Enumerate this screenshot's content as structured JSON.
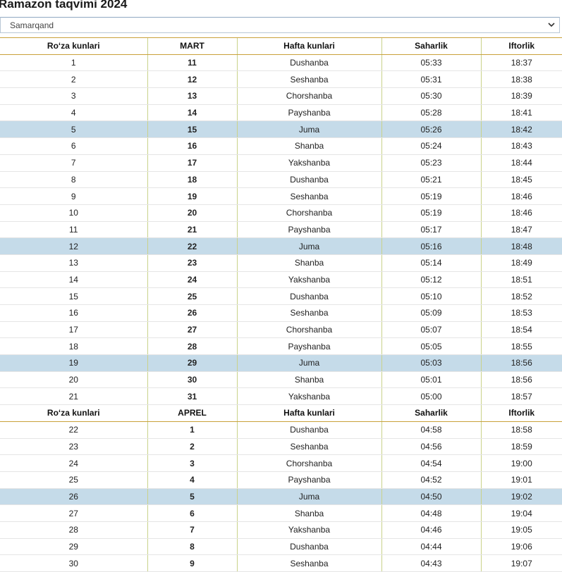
{
  "page": {
    "title": "Ramazon taqvimi 2024"
  },
  "city_select": {
    "value": "Samarqand",
    "icon": "chevron-down-icon"
  },
  "highlight_color": "#c5dbe9",
  "sections": [
    {
      "headers": [
        "Ro‘za kunlari",
        "MART",
        "Hafta kunlari",
        "Saharlik",
        "Iftorlik"
      ],
      "rows": [
        [
          "1",
          "11",
          "Dushanba",
          "05:33",
          "18:37"
        ],
        [
          "2",
          "12",
          "Seshanba",
          "05:31",
          "18:38"
        ],
        [
          "3",
          "13",
          "Chorshanba",
          "05:30",
          "18:39"
        ],
        [
          "4",
          "14",
          "Payshanba",
          "05:28",
          "18:41"
        ],
        [
          "5",
          "15",
          "Juma",
          "05:26",
          "18:42"
        ],
        [
          "6",
          "16",
          "Shanba",
          "05:24",
          "18:43"
        ],
        [
          "7",
          "17",
          "Yakshanba",
          "05:23",
          "18:44"
        ],
        [
          "8",
          "18",
          "Dushanba",
          "05:21",
          "18:45"
        ],
        [
          "9",
          "19",
          "Seshanba",
          "05:19",
          "18:46"
        ],
        [
          "10",
          "20",
          "Chorshanba",
          "05:19",
          "18:46"
        ],
        [
          "11",
          "21",
          "Payshanba",
          "05:17",
          "18:47"
        ],
        [
          "12",
          "22",
          "Juma",
          "05:16",
          "18:48"
        ],
        [
          "13",
          "23",
          "Shanba",
          "05:14",
          "18:49"
        ],
        [
          "14",
          "24",
          "Yakshanba",
          "05:12",
          "18:51"
        ],
        [
          "15",
          "25",
          "Dushanba",
          "05:10",
          "18:52"
        ],
        [
          "16",
          "26",
          "Seshanba",
          "05:09",
          "18:53"
        ],
        [
          "17",
          "27",
          "Chorshanba",
          "05:07",
          "18:54"
        ],
        [
          "18",
          "28",
          "Payshanba",
          "05:05",
          "18:55"
        ],
        [
          "19",
          "29",
          "Juma",
          "05:03",
          "18:56"
        ],
        [
          "20",
          "30",
          "Shanba",
          "05:01",
          "18:56"
        ],
        [
          "21",
          "31",
          "Yakshanba",
          "05:00",
          "18:57"
        ]
      ]
    },
    {
      "headers": [
        "Ro‘za kunlari",
        "APREL",
        "Hafta kunlari",
        "Saharlik",
        "Iftorlik"
      ],
      "rows": [
        [
          "22",
          "1",
          "Dushanba",
          "04:58",
          "18:58"
        ],
        [
          "23",
          "2",
          "Seshanba",
          "04:56",
          "18:59"
        ],
        [
          "24",
          "3",
          "Chorshanba",
          "04:54",
          "19:00"
        ],
        [
          "25",
          "4",
          "Payshanba",
          "04:52",
          "19:01"
        ],
        [
          "26",
          "5",
          "Juma",
          "04:50",
          "19:02"
        ],
        [
          "27",
          "6",
          "Shanba",
          "04:48",
          "19:04"
        ],
        [
          "28",
          "7",
          "Yakshanba",
          "04:46",
          "19:05"
        ],
        [
          "29",
          "8",
          "Dushanba",
          "04:44",
          "19:06"
        ],
        [
          "30",
          "9",
          "Seshanba",
          "04:43",
          "19:07"
        ]
      ]
    }
  ]
}
